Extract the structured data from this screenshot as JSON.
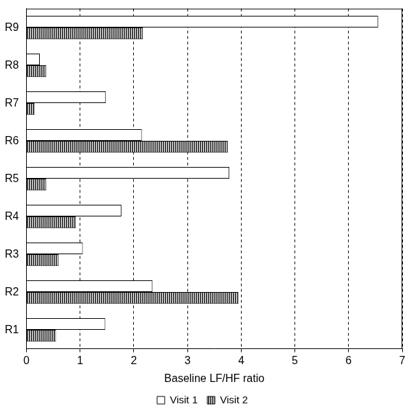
{
  "chart_data": {
    "type": "bar",
    "orientation": "horizontal",
    "x_label": "Baseline LF/HF ratio",
    "categories": [
      "R1",
      "R2",
      "R3",
      "R4",
      "R5",
      "R6",
      "R7",
      "R8",
      "R9"
    ],
    "series": [
      {
        "name": "Visit 1",
        "color": "#ffffff",
        "values": [
          1.47,
          2.35,
          1.05,
          1.77,
          3.78,
          2.15,
          1.48,
          0.25,
          6.55
        ]
      },
      {
        "name": "Visit 2",
        "color": "#404040",
        "values": [
          0.55,
          3.95,
          0.6,
          0.92,
          0.37,
          3.75,
          0.15,
          0.37,
          2.17
        ]
      }
    ],
    "xlim": [
      0,
      7
    ],
    "xticks": [
      0,
      1,
      2,
      3,
      4,
      5,
      6,
      7
    ],
    "grid": true,
    "legend": "bottom"
  }
}
